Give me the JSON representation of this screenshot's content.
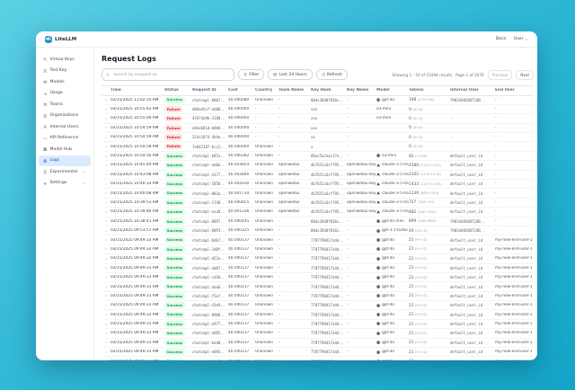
{
  "window": {
    "brand": "LiteLLM",
    "nav_links": {
      "docs": "Docs",
      "user": "User"
    }
  },
  "sidebar": {
    "items": [
      {
        "slug": "virtual-keys",
        "label": "Virtual Keys",
        "icon": "key-icon",
        "selected": false,
        "chevron": false
      },
      {
        "slug": "test-key",
        "label": "Test Key",
        "icon": "test-tube-icon",
        "selected": false,
        "chevron": false
      },
      {
        "slug": "models",
        "label": "Models",
        "icon": "box-icon",
        "selected": false,
        "chevron": false
      },
      {
        "slug": "usage",
        "label": "Usage",
        "icon": "bar-chart-icon",
        "selected": false,
        "chevron": false
      },
      {
        "slug": "teams",
        "label": "Teams",
        "icon": "users-icon",
        "selected": false,
        "chevron": false
      },
      {
        "slug": "organizations",
        "label": "Organizations",
        "icon": "building-icon",
        "selected": false,
        "chevron": false
      },
      {
        "slug": "internal-users",
        "label": "Internal Users",
        "icon": "user-icon",
        "selected": false,
        "chevron": false
      },
      {
        "slug": "api-reference",
        "label": "API Reference",
        "icon": "code-icon",
        "selected": false,
        "chevron": false
      },
      {
        "slug": "model-hub",
        "label": "Model Hub",
        "icon": "grid-icon",
        "selected": false,
        "chevron": false
      },
      {
        "slug": "logs",
        "label": "Logs",
        "icon": "logs-icon",
        "selected": true,
        "chevron": false
      },
      {
        "slug": "experimental",
        "label": "Experimental",
        "icon": "flask-icon",
        "selected": false,
        "chevron": true
      },
      {
        "slug": "settings",
        "label": "Settings",
        "icon": "gear-icon",
        "selected": false,
        "chevron": true
      }
    ]
  },
  "page": {
    "title": "Request Logs"
  },
  "toolbar": {
    "search_placeholder": "Search by Request ID",
    "filter_label": "Filter",
    "range_label": "Last 24 Hours",
    "refresh_label": "Refresh",
    "results_text": "Showing 1 - 50 of 53494 results",
    "page_text": "Page 1 of 1070",
    "previous_label": "Previous",
    "next_label": "Next"
  },
  "colors": {
    "accent": "#1d4ed8",
    "success_bg": "#dcfce7",
    "success_text": "#16a34a",
    "failure_bg": "#fee2e2",
    "failure_text": "#dc2626",
    "background_teal": "#14a4c7"
  },
  "table": {
    "columns": [
      "Time",
      "Status",
      "Request ID",
      "Cost",
      "Country",
      "Team Name",
      "Key Hash",
      "Key Name",
      "Model",
      "Tokens",
      "Internal User",
      "End User"
    ],
    "rows": [
      {
        "expanded": false,
        "time": "03/15/2025 11:02:10 AM",
        "status": "Success",
        "request_id": "chatcmpl-8807..",
        "cost": "$0.000080",
        "country": "Unknown",
        "team_name": "-",
        "key_hash": "88dc28d8f836c..",
        "key_name": "-",
        "model": "gpt-4o",
        "provider": "openai",
        "tokens": "198",
        "tokens_detail": "(172+26)",
        "internal_user": "7903448508724B..",
        "end_user": "-"
      },
      {
        "expanded": false,
        "time": "03/15/2025 10:55:42 AM",
        "status": "Failure",
        "request_id": "d8da45e7-eb08..",
        "cost": "$0.000000",
        "country": "-",
        "team_name": "-",
        "key_hash": "xxx",
        "key_name": "-",
        "model": "o3-mini",
        "provider": "",
        "tokens": "0",
        "tokens_detail": "(0+0)",
        "internal_user": "-",
        "end_user": "-"
      },
      {
        "expanded": false,
        "time": "03/15/2025 10:55:00 AM",
        "status": "Failure",
        "request_id": "43474a9b-3188..",
        "cost": "$0.000000",
        "country": "-",
        "team_name": "-",
        "key_hash": "xxx",
        "key_name": "-",
        "model": "o3-mini",
        "provider": "",
        "tokens": "0",
        "tokens_detail": "(0+0)",
        "internal_user": "-",
        "end_user": "-"
      },
      {
        "expanded": false,
        "time": "03/15/2025 10:54:59 AM",
        "status": "Failure",
        "request_id": "a9ee681d-b8b8..",
        "cost": "$0.000000",
        "country": "-",
        "team_name": "-",
        "key_hash": "xxx",
        "key_name": "-",
        "model": "",
        "provider": "",
        "tokens": "0",
        "tokens_detail": "(0+0)",
        "internal_user": "-",
        "end_user": "-"
      },
      {
        "expanded": false,
        "time": "03/15/2025 10:54:59 AM",
        "status": "Failure",
        "request_id": "324c1874-4b4e..",
        "cost": "$0.000000",
        "country": "-",
        "team_name": "-",
        "key_hash": "xx",
        "key_name": "-",
        "model": "",
        "provider": "",
        "tokens": "0",
        "tokens_detail": "(0+0)",
        "internal_user": "-",
        "end_user": "-"
      },
      {
        "expanded": false,
        "time": "03/15/2025 10:54:58 AM",
        "status": "Failure",
        "request_id": "7eb67387-bcc2..",
        "cost": "$0.000000",
        "country": "Unknown",
        "team_name": "-",
        "key_hash": "x",
        "key_name": "-",
        "model": "",
        "provider": "",
        "tokens": "0",
        "tokens_detail": "(0+0)",
        "internal_user": "-",
        "end_user": "-"
      },
      {
        "expanded": false,
        "time": "03/15/2025 10:54:56 AM",
        "status": "Success",
        "request_id": "chatcmpl-b87a..",
        "cost": "$0.000382",
        "country": "Unknown",
        "team_name": "-",
        "key_hash": "86ec5a2eac17e..",
        "key_name": "-",
        "model": "o3-mini",
        "provider": "openai",
        "tokens": "92",
        "tokens_detail": "(7+85)",
        "internal_user": "default_user_id",
        "end_user": "-"
      },
      {
        "expanded": false,
        "time": "03/15/2025 10:45:49 AM",
        "status": "Success",
        "request_id": "chatcmpl-eb0e..",
        "cost": "$0.003854",
        "country": "Unknown",
        "team_name": "openwebui",
        "key_hash": "4b7651c6cf795..",
        "key_name": "openwebui-key-2",
        "model": "claude-3-5-hai..",
        "provider": "anthropic",
        "tokens": "2580",
        "tokens_detail": "(2127+453)",
        "internal_user": "default_user_id",
        "end_user": "-"
      },
      {
        "expanded": false,
        "time": "03/15/2025 10:43:08 AM",
        "status": "Success",
        "request_id": "chatcmpl-4177..",
        "cost": "$0.002866",
        "country": "Unknown",
        "team_name": "openwebui",
        "key_hash": "4b7651c6cf795..",
        "key_name": "openwebui-key-2",
        "model": "claude-3-5-hai..",
        "provider": "anthropic",
        "tokens": "2102",
        "tokens_detail": "(1732+370)",
        "internal_user": "default_user_id",
        "end_user": "-"
      },
      {
        "expanded": true,
        "time": "03/15/2025 10:40:33 AM",
        "status": "Success",
        "request_id": "chatcmpl-5858..",
        "cost": "$0.002030",
        "country": "Unknown",
        "team_name": "openwebui",
        "key_hash": "4b7651c6cf795..",
        "key_name": "openwebui-key-2",
        "model": "claude-3-5-hai..",
        "provider": "anthropic",
        "tokens": "1433",
        "tokens_detail": "(1157+276)",
        "internal_user": "default_user_id",
        "end_user": "-"
      },
      {
        "expanded": true,
        "time": "03/15/2025 10:40:08 AM",
        "status": "Success",
        "request_id": "chatcmpl-883a..",
        "cost": "$0.001734",
        "country": "Unknown",
        "team_name": "openwebui",
        "key_hash": "4b7651c6cf795..",
        "key_name": "openwebui-key-2",
        "model": "claude-3-5-hai..",
        "provider": "anthropic",
        "tokens": "1139",
        "tokens_detail": "(885+254)",
        "internal_user": "default_user_id",
        "end_user": "-"
      },
      {
        "expanded": false,
        "time": "03/15/2025 10:39:53 AM",
        "status": "Success",
        "request_id": "chatcmpl-1748..",
        "cost": "$0.000855",
        "country": "Unknown",
        "team_name": "openwebui",
        "key_hash": "4b7651c6cf795..",
        "key_name": "openwebui-key-2",
        "model": "claude-3-5-hai..",
        "provider": "anthropic",
        "tokens": "727",
        "tokens_detail": "(704+23)",
        "internal_user": "default_user_id",
        "end_user": "-"
      },
      {
        "expanded": false,
        "time": "03/15/2025 10:39:46 AM",
        "status": "Success",
        "request_id": "chatcmpl-exa8..",
        "cost": "$0.001336",
        "country": "Unknown",
        "team_name": "openwebui",
        "key_hash": "4b7651c6cf795..",
        "key_name": "openwebui-key-2",
        "model": "claude-3-5-hai..",
        "provider": "anthropic",
        "tokens": "482",
        "tokens_detail": "(180+302)",
        "internal_user": "default_user_id",
        "end_user": "-"
      },
      {
        "expanded": false,
        "time": "03/15/2025 10:38:41 AM",
        "status": "Success",
        "request_id": "chatcmpl-88P7..",
        "cost": "$0.000445",
        "country": "Unknown",
        "team_name": "-",
        "key_hash": "88dc28d8f836c..",
        "key_name": "-",
        "model": "gpt-4o mini",
        "provider": "openai",
        "tokens": "899",
        "tokens_detail": "(209+690)",
        "internal_user": "7903448508724B..",
        "end_user": "-"
      },
      {
        "expanded": false,
        "time": "03/15/2025 09:53:57 AM",
        "status": "Success",
        "request_id": "chatcmpl-88P3..",
        "cost": "$0.000325",
        "country": "Unknown",
        "team_name": "-",
        "key_hash": "88dc28d8f836c..",
        "key_name": "-",
        "model": "gpt-3.5-turbo",
        "provider": "openai",
        "tokens": "44",
        "tokens_detail": "(41+3)",
        "internal_user": "7903448508724B..",
        "end_user": "-"
      },
      {
        "expanded": false,
        "time": "03/15/2025 09:49:32 AM",
        "status": "Success",
        "request_id": "chatcmpl-6db7..",
        "cost": "$0.000137",
        "country": "Unknown",
        "team_name": "-",
        "key_hash": "7787798417a4d..",
        "key_name": "-",
        "model": "gpt-4o",
        "provider": "openai",
        "tokens": "21",
        "tokens_detail": "(9+12)",
        "internal_user": "default_user_id",
        "end_user": "my-new-end-user-1"
      },
      {
        "expanded": false,
        "time": "03/15/2025 09:49:32 AM",
        "status": "Success",
        "request_id": "chatcmpl-2d8f..",
        "cost": "$0.000137",
        "country": "Unknown",
        "team_name": "-",
        "key_hash": "7787798417a4d..",
        "key_name": "-",
        "model": "gpt-4o",
        "provider": "openai",
        "tokens": "21",
        "tokens_detail": "(9+12)",
        "internal_user": "default_user_id",
        "end_user": "my-new-end-user-1"
      },
      {
        "expanded": false,
        "time": "03/15/2025 09:49:32 AM",
        "status": "Success",
        "request_id": "chatcmpl-d52a..",
        "cost": "$0.000137",
        "country": "Unknown",
        "team_name": "-",
        "key_hash": "7787798417a4d..",
        "key_name": "-",
        "model": "gpt-4o",
        "provider": "openai",
        "tokens": "21",
        "tokens_detail": "(9+12)",
        "internal_user": "default_user_id",
        "end_user": "my-new-end-user-1"
      },
      {
        "expanded": false,
        "time": "03/15/2025 09:49:31 AM",
        "status": "Success",
        "request_id": "chatcmpl-a087..",
        "cost": "$0.000137",
        "country": "Unknown",
        "team_name": "-",
        "key_hash": "7787798417a4d..",
        "key_name": "-",
        "model": "gpt-4o",
        "provider": "openai",
        "tokens": "21",
        "tokens_detail": "(9+12)",
        "internal_user": "default_user_id",
        "end_user": "my-new-end-user-1"
      },
      {
        "expanded": false,
        "time": "03/15/2025 09:49:31 AM",
        "status": "Success",
        "request_id": "chatcmpl-cd3b..",
        "cost": "$0.000137",
        "country": "Unknown",
        "team_name": "-",
        "key_hash": "7787798417a4d..",
        "key_name": "-",
        "model": "gpt-4o",
        "provider": "openai",
        "tokens": "21",
        "tokens_detail": "(9+12)",
        "internal_user": "default_user_id",
        "end_user": "my-new-end-user-1"
      },
      {
        "expanded": false,
        "time": "03/15/2025 09:49:31 AM",
        "status": "Success",
        "request_id": "chatcmpl-aba6..",
        "cost": "$0.000137",
        "country": "Unknown",
        "team_name": "-",
        "key_hash": "7787798417a4d..",
        "key_name": "-",
        "model": "gpt-4o",
        "provider": "openai",
        "tokens": "21",
        "tokens_detail": "(9+12)",
        "internal_user": "default_user_id",
        "end_user": "my-new-end-user-1"
      },
      {
        "expanded": false,
        "time": "03/15/2025 09:49:31 AM",
        "status": "Success",
        "request_id": "chatcmpl-f5e7..",
        "cost": "$0.000137",
        "country": "Unknown",
        "team_name": "-",
        "key_hash": "7787798417a4d..",
        "key_name": "-",
        "model": "gpt-4o",
        "provider": "openai",
        "tokens": "21",
        "tokens_detail": "(9+12)",
        "internal_user": "default_user_id",
        "end_user": "my-new-end-user-1"
      },
      {
        "expanded": false,
        "time": "03/15/2025 09:49:31 AM",
        "status": "Success",
        "request_id": "chatcmpl-43e9..",
        "cost": "$0.000137",
        "country": "Unknown",
        "team_name": "-",
        "key_hash": "7787798417a4d..",
        "key_name": "-",
        "model": "gpt-4o",
        "provider": "openai",
        "tokens": "21",
        "tokens_detail": "(9+12)",
        "internal_user": "default_user_id",
        "end_user": "my-new-end-user-1"
      },
      {
        "expanded": false,
        "time": "03/15/2025 09:49:31 AM",
        "status": "Success",
        "request_id": "chatcmpl-8968..",
        "cost": "$0.000137",
        "country": "Unknown",
        "team_name": "-",
        "key_hash": "7787798417a4d..",
        "key_name": "-",
        "model": "gpt-4o",
        "provider": "openai",
        "tokens": "21",
        "tokens_detail": "(9+12)",
        "internal_user": "default_user_id",
        "end_user": "my-new-end-user-1"
      },
      {
        "expanded": false,
        "time": "03/15/2025 09:49:31 AM",
        "status": "Success",
        "request_id": "chatcmpl-e977..",
        "cost": "$0.000137",
        "country": "Unknown",
        "team_name": "-",
        "key_hash": "7787798417a4d..",
        "key_name": "-",
        "model": "gpt-4o",
        "provider": "openai",
        "tokens": "21",
        "tokens_detail": "(9+12)",
        "internal_user": "default_user_id",
        "end_user": "my-new-end-user-1"
      },
      {
        "expanded": false,
        "time": "03/15/2025 09:49:31 AM",
        "status": "Success",
        "request_id": "chatcmpl-a965..",
        "cost": "$0.000137",
        "country": "Unknown",
        "team_name": "-",
        "key_hash": "7787798417a4d..",
        "key_name": "-",
        "model": "gpt-4o",
        "provider": "openai",
        "tokens": "21",
        "tokens_detail": "(9+12)",
        "internal_user": "default_user_id",
        "end_user": "my-new-end-user-1"
      },
      {
        "expanded": false,
        "time": "03/15/2025 09:49:31 AM",
        "status": "Success",
        "request_id": "chatcmpl-6ed8..",
        "cost": "$0.000137",
        "country": "Unknown",
        "team_name": "-",
        "key_hash": "7787798417a4d..",
        "key_name": "-",
        "model": "gpt-4o",
        "provider": "openai",
        "tokens": "21",
        "tokens_detail": "(9+12)",
        "internal_user": "default_user_id",
        "end_user": "my-new-end-user-1"
      },
      {
        "expanded": false,
        "time": "03/15/2025 09:49:31 AM",
        "status": "Success",
        "request_id": "chatcmpl-e891..",
        "cost": "$0.000137",
        "country": "Unknown",
        "team_name": "-",
        "key_hash": "7787798417a4d..",
        "key_name": "-",
        "model": "gpt-4o",
        "provider": "openai",
        "tokens": "21",
        "tokens_detail": "(9+12)",
        "internal_user": "default_user_id",
        "end_user": "my-new-end-user-1"
      },
      {
        "expanded": false,
        "time": "03/15/2025 09:49:31 AM",
        "status": "Success",
        "request_id": "chatcmpl-6cc7..",
        "cost": "$0.000137",
        "country": "Unknown",
        "team_name": "-",
        "key_hash": "7787798417a4d..",
        "key_name": "-",
        "model": "gpt-4o",
        "provider": "openai",
        "tokens": "21",
        "tokens_detail": "(9+12)",
        "internal_user": "default_user_id",
        "end_user": "my-new-end-user-1"
      },
      {
        "expanded": false,
        "time": "03/15/2025 09:49:31 AM",
        "status": "Success",
        "request_id": "chatcmpl-77e1..",
        "cost": "$0.000137",
        "country": "Unknown",
        "team_name": "-",
        "key_hash": "7787798417a4d..",
        "key_name": "-",
        "model": "gpt-4o",
        "provider": "openai",
        "tokens": "21",
        "tokens_detail": "(9+12)",
        "internal_user": "default_user_id",
        "end_user": "my-new-end-user-1"
      },
      {
        "expanded": false,
        "time": "03/15/2025 09:49:31 AM",
        "status": "Success",
        "request_id": "chatcmpl-8147..",
        "cost": "$0.000137",
        "country": "Unknown",
        "team_name": "-",
        "key_hash": "7787798417a4d..",
        "key_name": "-",
        "model": "gpt-4o",
        "provider": "openai",
        "tokens": "21",
        "tokens_detail": "(9+12)",
        "internal_user": "default_user_id",
        "end_user": "my-new-end-user-1"
      }
    ]
  }
}
